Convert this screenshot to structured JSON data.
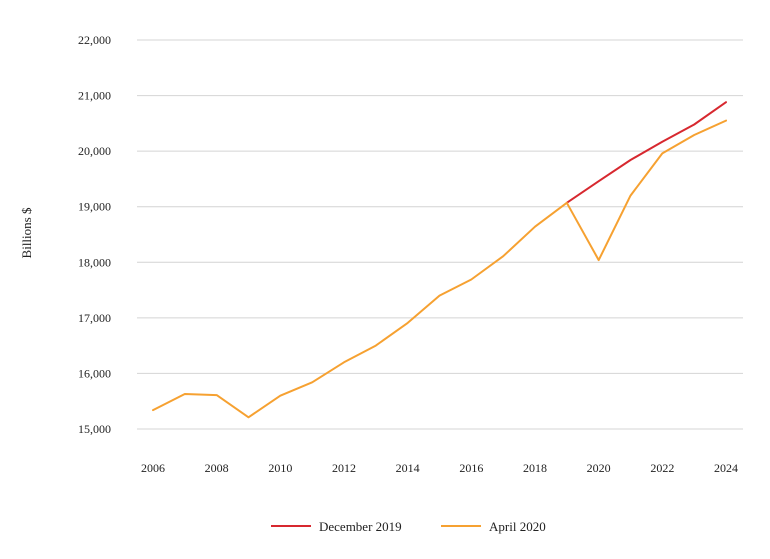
{
  "chart_data": {
    "type": "line",
    "title": "",
    "xlabel": "",
    "ylabel": "Billions $",
    "x": [
      2006,
      2007,
      2008,
      2009,
      2010,
      2011,
      2012,
      2013,
      2014,
      2015,
      2016,
      2017,
      2018,
      2019,
      2020,
      2021,
      2022,
      2023,
      2024
    ],
    "x_ticks": [
      "2006",
      "2008",
      "2010",
      "2012",
      "2014",
      "2016",
      "2018",
      "2020",
      "2022",
      "2024"
    ],
    "y_ticks": [
      "15,000",
      "16,000",
      "17,000",
      "18,000",
      "19,000",
      "20,000",
      "21,000",
      "22,000"
    ],
    "xlim": [
      2006,
      2024
    ],
    "ylim": [
      15000,
      22000
    ],
    "grid": "horizontal",
    "legend_position": "bottom-center",
    "series": [
      {
        "name": "December 2019",
        "color": "#d7282f",
        "x": [
          2019,
          2020,
          2021,
          2022,
          2023,
          2024
        ],
        "values": [
          19070,
          19460,
          19840,
          20170,
          20480,
          20880
        ]
      },
      {
        "name": "April 2020",
        "color": "#f6a131",
        "x": [
          2006,
          2007,
          2008,
          2009,
          2010,
          2011,
          2012,
          2013,
          2014,
          2015,
          2016,
          2017,
          2018,
          2019,
          2020,
          2021,
          2022,
          2023,
          2024
        ],
        "values": [
          15340,
          15630,
          15610,
          15210,
          15600,
          15840,
          16200,
          16500,
          16910,
          17400,
          17690,
          18110,
          18640,
          19070,
          18040,
          19200,
          19960,
          20290,
          20550
        ]
      }
    ]
  }
}
